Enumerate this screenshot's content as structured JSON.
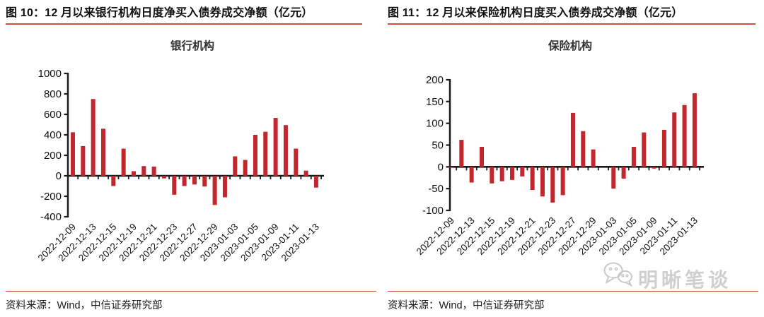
{
  "panels": [
    {
      "figure_title": "图 10：12 月以来银行机构日度净买入债券成交净额（亿元）",
      "source_note": "资料来源：Wind，中信证券研究部"
    },
    {
      "figure_title": "图 11：12 月以来保险机构日度买入债券成交净额（亿元）",
      "source_note": "资料来源：Wind，中信证券研究部"
    }
  ],
  "watermark": {
    "text": "明晰笔谈",
    "icon": "wechat-icon"
  },
  "colors": {
    "bar": "#c1272d",
    "rule_red": "#d0503e",
    "axis": "#1a1a1a",
    "tick_label": "#111111",
    "chart_title": "#333333",
    "watermark_gray": "#cfcfcf"
  },
  "chart_data": [
    {
      "type": "bar",
      "title": "银行机构",
      "categories": [
        "2022-12-09",
        "2022-12-12",
        "2022-12-13",
        "2022-12-14",
        "2022-12-15",
        "2022-12-16",
        "2022-12-19",
        "2022-12-20",
        "2022-12-21",
        "2022-12-22",
        "2022-12-23",
        "2022-12-26",
        "2022-12-27",
        "2022-12-28",
        "2022-12-29",
        "2022-12-30",
        "2023-01-03",
        "2023-01-04",
        "2023-01-05",
        "2023-01-06",
        "2023-01-09",
        "2023-01-10",
        "2023-01-11",
        "2023-01-12",
        "2023-01-13"
      ],
      "values": [
        425,
        290,
        750,
        460,
        -100,
        265,
        45,
        95,
        90,
        -25,
        -185,
        -100,
        -85,
        -105,
        -285,
        -210,
        190,
        155,
        400,
        430,
        565,
        495,
        265,
        50,
        -115
      ],
      "xtick_labels": [
        "2022-12-09",
        "2022-12-13",
        "2022-12-15",
        "2022-12-19",
        "2022-12-21",
        "2022-12-23",
        "2022-12-27",
        "2022-12-29",
        "2023-01-03",
        "2023-01-05",
        "2023-01-09",
        "2023-01-11",
        "2023-01-13"
      ],
      "label_every": 2,
      "ylim": [
        -400,
        1000
      ],
      "ytick_step": 200,
      "xlabel": "",
      "ylabel": "",
      "grid": false,
      "legend": null
    },
    {
      "type": "bar",
      "title": "保险机构",
      "categories": [
        "2022-12-09",
        "2022-12-12",
        "2022-12-13",
        "2022-12-14",
        "2022-12-15",
        "2022-12-16",
        "2022-12-19",
        "2022-12-20",
        "2022-12-21",
        "2022-12-22",
        "2022-12-23",
        "2022-12-26",
        "2022-12-27",
        "2022-12-28",
        "2022-12-29",
        "2022-12-30",
        "2023-01-03",
        "2023-01-04",
        "2023-01-05",
        "2023-01-06",
        "2023-01-09",
        "2023-01-10",
        "2023-01-11",
        "2023-01-12",
        "2023-01-13"
      ],
      "values": [
        -2,
        62,
        -36,
        46,
        -38,
        -33,
        -30,
        -22,
        -53,
        -68,
        -82,
        -65,
        124,
        82,
        40,
        0,
        -50,
        -27,
        46,
        79,
        -4,
        85,
        125,
        142,
        169
      ],
      "xtick_labels": [
        "2022-12-09",
        "2022-12-13",
        "2022-12-15",
        "2022-12-19",
        "2022-12-21",
        "2022-12-23",
        "2022-12-27",
        "2022-12-29",
        "2023-01-03",
        "2023-01-05",
        "2023-01-09",
        "2023-01-11",
        "2023-01-13"
      ],
      "label_every": 2,
      "ylim": [
        -100,
        200
      ],
      "ytick_step": 50,
      "xlabel": "",
      "ylabel": "",
      "grid": false,
      "legend": null
    }
  ]
}
